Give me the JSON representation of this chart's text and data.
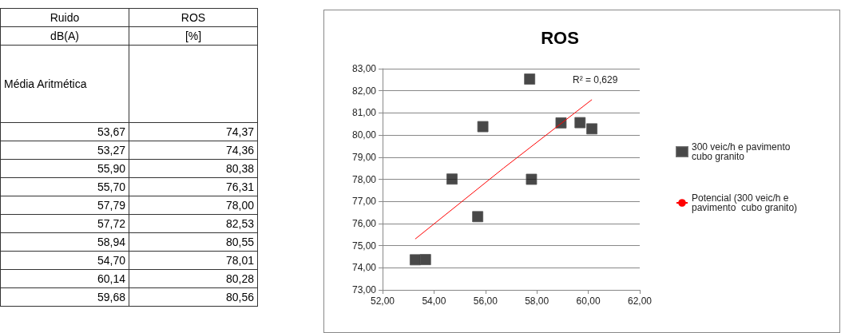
{
  "chart_data": [
    {
      "type": "other",
      "annotations": [
        "Ruido",
        "ROS",
        "dB(A)",
        "[%]",
        "Média Aritmética",
        "53,67",
        "74,37",
        "53,27",
        "74,36",
        "55,90",
        "80,38",
        "55,70",
        "76,31",
        "57,79",
        "78,00",
        "57,72",
        "82,53",
        "58,94",
        "80,55",
        "54,70",
        "78,01",
        "60,14",
        "80,28",
        "59,68",
        "80,56"
      ]
    },
    {
      "type": "scatter",
      "title": "ROS",
      "x": [
        53.67,
        53.27,
        55.9,
        55.7,
        57.79,
        57.72,
        58.94,
        54.7,
        60.14,
        59.68
      ],
      "series": [
        {
          "name": "300 veic/h e pavimento cubo granito",
          "type": "scatter",
          "color": "#1a1a1a",
          "marker": "square",
          "values": [
            74.37,
            74.36,
            80.38,
            76.31,
            78.0,
            82.53,
            80.55,
            78.01,
            80.28,
            80.56
          ]
        },
        {
          "name": "Potencial (300 veic/h e pavimento  cubo granito)",
          "type": "line",
          "color": "#ff0000",
          "marker": "none",
          "x": [
            53.27,
            56.7,
            60.14
          ],
          "values": [
            75.3,
            78.5,
            81.6
          ]
        }
      ],
      "xlim": [
        52,
        62
      ],
      "xticks": [
        {
          "value": 52,
          "label": "52,00"
        },
        {
          "value": 54,
          "label": "54,00"
        },
        {
          "value": 56,
          "label": "56,00"
        },
        {
          "value": 58,
          "label": "58,00"
        },
        {
          "value": 60,
          "label": "60,00"
        },
        {
          "value": 62,
          "label": "62,00"
        }
      ],
      "ylim": [
        73,
        83
      ],
      "yticks": [
        {
          "value": 73,
          "label": "73,00"
        },
        {
          "value": 74,
          "label": "74,00"
        },
        {
          "value": 75,
          "label": "75,00"
        },
        {
          "value": 76,
          "label": "76,00"
        },
        {
          "value": 77,
          "label": "77,00"
        },
        {
          "value": 78,
          "label": "78,00"
        },
        {
          "value": 79,
          "label": "79,00"
        },
        {
          "value": 80,
          "label": "80,00"
        },
        {
          "value": 81,
          "label": "81,00"
        },
        {
          "value": 82,
          "label": "82,00"
        },
        {
          "value": 83,
          "label": "83,00"
        }
      ],
      "grid": "y",
      "legend": "right",
      "annotations": [
        "R² = 0,629"
      ]
    }
  ]
}
